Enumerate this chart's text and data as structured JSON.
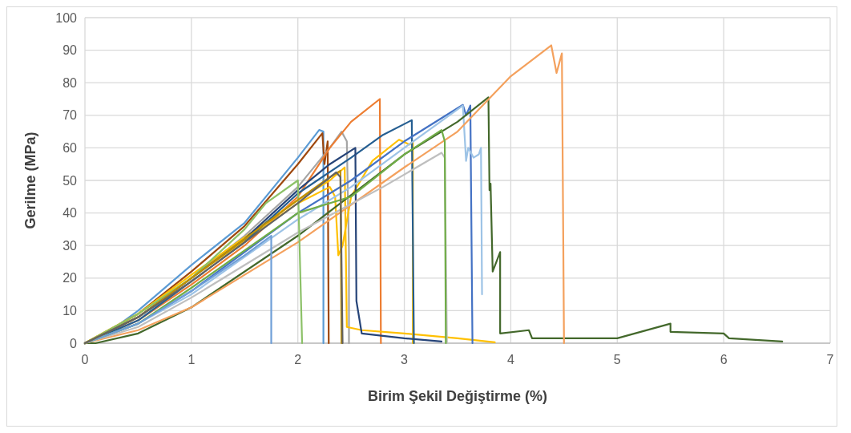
{
  "chart_data": {
    "type": "line",
    "xlabel": "Birim Şekil Değiştirme (%)",
    "ylabel": "Gerilme (MPa)",
    "xlim": [
      0,
      7
    ],
    "xticks": [
      0,
      1,
      2,
      3,
      4,
      5,
      6,
      7
    ],
    "ylim": [
      0,
      100
    ],
    "yticks": [
      0,
      10,
      20,
      30,
      40,
      50,
      60,
      70,
      80,
      90,
      100
    ],
    "grid": true,
    "series": [
      {
        "color": "#5b9bd5",
        "x": [
          0,
          0.25,
          0.5,
          1,
          1.5,
          2,
          2.2,
          2.24,
          2.24
        ],
        "values": [
          0,
          4,
          10,
          24,
          37,
          57,
          65.5,
          65,
          0
        ]
      },
      {
        "color": "#9e480e",
        "x": [
          0,
          0.5,
          1,
          1.5,
          2,
          2.23,
          2.25,
          2.28,
          2.29
        ],
        "values": [
          0,
          9,
          22,
          36,
          55,
          64.5,
          55,
          62,
          0
        ]
      },
      {
        "color": "#a5a5a5",
        "x": [
          0,
          0.5,
          1,
          1.5,
          2,
          2.3,
          2.41,
          2.46,
          2.48,
          2.48
        ],
        "values": [
          0,
          8,
          20,
          33,
          48,
          60,
          65,
          62,
          28,
          0
        ]
      },
      {
        "color": "#ed7d31",
        "x": [
          0,
          0.5,
          1,
          1.5,
          2,
          2.3,
          2.5,
          2.77,
          2.78
        ],
        "values": [
          0,
          7,
          18,
          30,
          45,
          60,
          68,
          75,
          0
        ]
      },
      {
        "color": "#ffc000",
        "x": [
          0,
          0.5,
          1,
          2,
          2.3,
          2.35,
          2.38,
          2.42,
          2.5,
          2.7,
          2.95,
          3.05,
          3.08,
          3.08
        ],
        "values": [
          0,
          9,
          20,
          43,
          48,
          45,
          27,
          30,
          45,
          56,
          62.5,
          61,
          62,
          0
        ]
      },
      {
        "color": "#ffc000",
        "x": [
          0,
          0.5,
          1,
          2,
          2.3,
          2.44,
          2.46,
          2.6,
          3,
          3.5,
          3.85
        ],
        "values": [
          0,
          9,
          21,
          44,
          50,
          54,
          5,
          4,
          3,
          1.5,
          0.3
        ]
      },
      {
        "color": "#255e91",
        "x": [
          0,
          0.5,
          1,
          1.5,
          2,
          2.5,
          2.8,
          3.07,
          3.09
        ],
        "values": [
          0,
          7,
          19,
          31,
          46,
          57,
          64,
          68.5,
          0
        ]
      },
      {
        "color": "#264478",
        "x": [
          0,
          0.5,
          1,
          1.5,
          2,
          2.3,
          2.54,
          2.55,
          2.6,
          3,
          3.35
        ],
        "values": [
          0,
          8,
          20,
          32,
          47,
          55,
          60,
          13,
          3,
          1.5,
          0.5
        ]
      },
      {
        "color": "#4472c4",
        "x": [
          0,
          0.5,
          1,
          2,
          2.5,
          3,
          3.55,
          3.58,
          3.62,
          3.64
        ],
        "values": [
          0,
          6,
          16,
          40,
          50,
          62,
          73.2,
          70,
          73,
          0
        ]
      },
      {
        "color": "#9dc3e6",
        "x": [
          0,
          0.5,
          1,
          2,
          2.5,
          3,
          3.55,
          3.58,
          3.6,
          3.65,
          3.7,
          3.72,
          3.73
        ],
        "values": [
          0,
          6,
          15,
          38,
          48,
          60,
          73,
          56,
          60,
          57,
          58,
          60,
          15
        ]
      },
      {
        "color": "#43682b",
        "x": [
          0,
          0.1,
          0.5,
          1,
          2,
          3,
          3.5,
          3.79,
          3.8,
          3.81,
          3.83,
          3.9,
          3.9,
          4.17,
          4.2,
          5,
          5.5,
          5.5,
          6,
          6.05,
          6.55
        ],
        "values": [
          0,
          0,
          3,
          11,
          33,
          58,
          68,
          75.5,
          47,
          49,
          22,
          28,
          3,
          4,
          1.5,
          1.5,
          6,
          3.5,
          3,
          1.5,
          0.5
        ]
      },
      {
        "color": "#f4a15d",
        "x": [
          0,
          0.5,
          1,
          2,
          3,
          3.5,
          4,
          4.38,
          4.43,
          4.48,
          4.5
        ],
        "values": [
          0,
          4,
          11,
          31,
          54,
          65,
          82,
          91.5,
          83,
          89,
          0
        ]
      },
      {
        "color": "#bfbfbf",
        "x": [
          0,
          0.5,
          1,
          2,
          2.8,
          3.35,
          3.38,
          3.4
        ],
        "values": [
          0,
          5,
          14,
          34,
          48,
          58.5,
          57,
          0
        ]
      },
      {
        "color": "#70ad47",
        "x": [
          0,
          0.5,
          1,
          2,
          2.5,
          3,
          3.35,
          3.38,
          3.39
        ],
        "values": [
          0,
          6,
          17,
          40,
          45,
          58,
          65.5,
          62,
          0
        ]
      },
      {
        "color": "#8cc168",
        "x": [
          0,
          0.5,
          1,
          1.5,
          1.7,
          2,
          2.04
        ],
        "values": [
          0,
          9,
          20,
          35,
          43,
          50,
          0
        ]
      },
      {
        "color": "#6f9fd8",
        "x": [
          0,
          0.5,
          1,
          1.5,
          1.75,
          1.75
        ],
        "values": [
          0,
          6,
          16,
          27,
          33,
          0
        ]
      },
      {
        "color": "#bf9000",
        "x": [
          0,
          0.5,
          1,
          2,
          2.3,
          2.4,
          2.41
        ],
        "values": [
          0,
          8,
          20,
          44,
          51,
          53,
          0
        ]
      },
      {
        "color": "#636363",
        "x": [
          0,
          0.5,
          1,
          2,
          2.36,
          2.4,
          2.42
        ],
        "values": [
          0,
          8,
          19,
          43,
          52.5,
          51,
          0
        ]
      }
    ]
  }
}
